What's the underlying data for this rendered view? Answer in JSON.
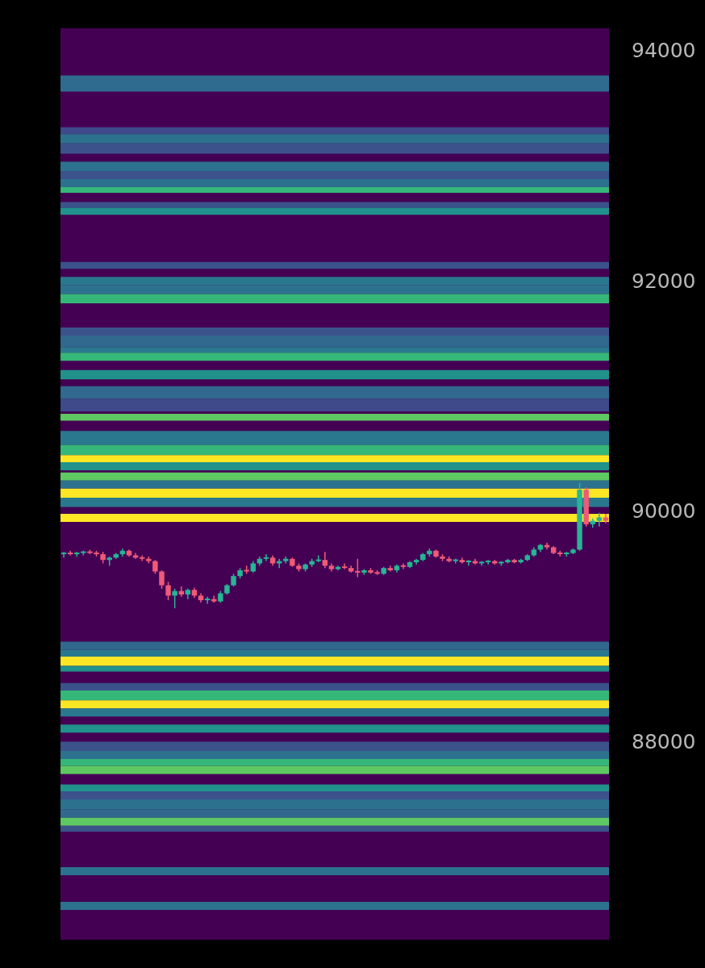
{
  "chart_data": {
    "type": "candlestick",
    "categories": [
      null,
      null,
      null,
      null,
      null,
      null,
      null,
      null,
      null,
      null,
      null,
      null,
      null,
      null,
      null,
      null,
      null,
      null,
      null,
      null,
      null,
      null,
      null,
      null,
      null,
      null,
      null,
      null,
      null,
      null,
      null,
      null,
      null,
      null,
      null,
      null,
      null,
      null,
      null,
      null,
      null,
      null,
      null,
      null,
      null,
      null,
      null,
      null,
      null,
      null,
      null,
      null,
      null,
      null,
      null,
      null,
      null,
      null,
      null,
      null,
      null,
      null,
      null,
      null,
      null,
      null,
      null,
      null,
      null,
      null,
      null,
      null,
      null,
      null,
      null,
      null,
      null,
      null,
      null,
      null,
      null,
      null,
      null,
      null
    ],
    "ohlc": [
      [
        89640,
        89660,
        89610,
        89650
      ],
      [
        89650,
        89670,
        89630,
        89640
      ],
      [
        89640,
        89660,
        89620,
        89650
      ],
      [
        89650,
        89670,
        89630,
        89660
      ],
      [
        89660,
        89680,
        89640,
        89650
      ],
      [
        89650,
        89670,
        89620,
        89640
      ],
      [
        89640,
        89660,
        89560,
        89590
      ],
      [
        89590,
        89620,
        89540,
        89610
      ],
      [
        89610,
        89650,
        89600,
        89640
      ],
      [
        89640,
        89690,
        89620,
        89670
      ],
      [
        89670,
        89680,
        89620,
        89630
      ],
      [
        89630,
        89650,
        89600,
        89610
      ],
      [
        89610,
        89630,
        89580,
        89600
      ],
      [
        89600,
        89620,
        89560,
        89580
      ],
      [
        89580,
        89590,
        89470,
        89490
      ],
      [
        89490,
        89500,
        89340,
        89370
      ],
      [
        89370,
        89400,
        89240,
        89280
      ],
      [
        89280,
        89340,
        89170,
        89320
      ],
      [
        89320,
        89360,
        89270,
        89290
      ],
      [
        89290,
        89340,
        89250,
        89330
      ],
      [
        89330,
        89350,
        89260,
        89280
      ],
      [
        89280,
        89300,
        89220,
        89240
      ],
      [
        89240,
        89270,
        89210,
        89250
      ],
      [
        89250,
        89280,
        89220,
        89230
      ],
      [
        89230,
        89320,
        89220,
        89300
      ],
      [
        89300,
        89380,
        89290,
        89370
      ],
      [
        89370,
        89470,
        89360,
        89450
      ],
      [
        89450,
        89520,
        89430,
        89500
      ],
      [
        89500,
        89540,
        89470,
        89490
      ],
      [
        89490,
        89580,
        89480,
        89560
      ],
      [
        89560,
        89620,
        89540,
        89600
      ],
      [
        89600,
        89640,
        89580,
        89610
      ],
      [
        89610,
        89630,
        89540,
        89560
      ],
      [
        89560,
        89600,
        89520,
        89580
      ],
      [
        89580,
        89620,
        89560,
        89600
      ],
      [
        89600,
        89610,
        89530,
        89540
      ],
      [
        89540,
        89560,
        89490,
        89510
      ],
      [
        89510,
        89560,
        89490,
        89550
      ],
      [
        89550,
        89600,
        89530,
        89580
      ],
      [
        89580,
        89630,
        89570,
        89590
      ],
      [
        89590,
        89660,
        89520,
        89540
      ],
      [
        89540,
        89560,
        89490,
        89510
      ],
      [
        89510,
        89540,
        89500,
        89530
      ],
      [
        89530,
        89560,
        89510,
        89520
      ],
      [
        89520,
        89540,
        89480,
        89490
      ],
      [
        89490,
        89600,
        89440,
        89480
      ],
      [
        89480,
        89510,
        89460,
        89500
      ],
      [
        89500,
        89520,
        89470,
        89480
      ],
      [
        89480,
        89500,
        89460,
        89470
      ],
      [
        89470,
        89530,
        89460,
        89520
      ],
      [
        89520,
        89540,
        89490,
        89500
      ],
      [
        89500,
        89550,
        89480,
        89540
      ],
      [
        89540,
        89560,
        89510,
        89530
      ],
      [
        89530,
        89580,
        89520,
        89570
      ],
      [
        89570,
        89600,
        89550,
        89590
      ],
      [
        89590,
        89650,
        89580,
        89640
      ],
      [
        89640,
        89690,
        89620,
        89670
      ],
      [
        89670,
        89680,
        89610,
        89620
      ],
      [
        89620,
        89640,
        89580,
        89600
      ],
      [
        89600,
        89620,
        89570,
        89580
      ],
      [
        89580,
        89600,
        89560,
        89590
      ],
      [
        89590,
        89610,
        89560,
        89570
      ],
      [
        89570,
        89590,
        89540,
        89580
      ],
      [
        89580,
        89600,
        89550,
        89560
      ],
      [
        89560,
        89580,
        89540,
        89570
      ],
      [
        89570,
        89590,
        89550,
        89580
      ],
      [
        89580,
        89590,
        89550,
        89560
      ],
      [
        89560,
        89580,
        89540,
        89570
      ],
      [
        89570,
        89600,
        89560,
        89590
      ],
      [
        89590,
        89600,
        89560,
        89570
      ],
      [
        89570,
        89600,
        89560,
        89590
      ],
      [
        89590,
        89640,
        89580,
        89630
      ],
      [
        89630,
        89700,
        89620,
        89680
      ],
      [
        89680,
        89730,
        89660,
        89720
      ],
      [
        89720,
        89740,
        89680,
        89700
      ],
      [
        89700,
        89710,
        89640,
        89650
      ],
      [
        89650,
        89670,
        89620,
        89640
      ],
      [
        89640,
        89660,
        89620,
        89650
      ],
      [
        89650,
        89690,
        89640,
        89680
      ],
      [
        89680,
        90260,
        89670,
        90200
      ],
      [
        90200,
        90220,
        89880,
        89900
      ],
      [
        89900,
        89950,
        89870,
        89930
      ],
      [
        89930,
        90000,
        89880,
        89960
      ],
      [
        89960,
        89990,
        89910,
        89930
      ]
    ],
    "colors": [
      "#26b596",
      "#ef5a78",
      "#26b596",
      "#26b596",
      "#ef5a78",
      "#ef5a78",
      "#ef5a78",
      "#26b596",
      "#26b596",
      "#26b596",
      "#ef5a78",
      "#ef5a78",
      "#ef5a78",
      "#ef5a78",
      "#ef5a78",
      "#ef5a78",
      "#ef5a78",
      "#26b596",
      "#ef5a78",
      "#26b596",
      "#ef5a78",
      "#ef5a78",
      "#26b596",
      "#ef5a78",
      "#26b596",
      "#26b596",
      "#26b596",
      "#26b596",
      "#ef5a78",
      "#26b596",
      "#26b596",
      "#26b596",
      "#ef5a78",
      "#26b596",
      "#26b596",
      "#ef5a78",
      "#ef5a78",
      "#26b596",
      "#26b596",
      "#26b596",
      "#ef5a78",
      "#ef5a78",
      "#26b596",
      "#ef5a78",
      "#ef5a78",
      "#ef5a78",
      "#26b596",
      "#ef5a78",
      "#ef5a78",
      "#26b596",
      "#ef5a78",
      "#26b596",
      "#ef5a78",
      "#26b596",
      "#26b596",
      "#26b596",
      "#26b596",
      "#ef5a78",
      "#ef5a78",
      "#ef5a78",
      "#26b596",
      "#ef5a78",
      "#26b596",
      "#ef5a78",
      "#26b596",
      "#26b596",
      "#ef5a78",
      "#26b596",
      "#26b596",
      "#ef5a78",
      "#26b596",
      "#26b596",
      "#26b596",
      "#26b596",
      "#ef5a78",
      "#ef5a78",
      "#ef5a78",
      "#26b596",
      "#26b596",
      "#26b596",
      "#ef5a78",
      "#26b596",
      "#26b596",
      "#ef5a78"
    ],
    "ylim": [
      86290,
      94210
    ],
    "yticks": [
      88000,
      90000,
      92000,
      94000
    ],
    "tick_labels": "y",
    "grid": false,
    "bands": [
      {
        "axis": "y",
        "from": 93660,
        "to": 93800,
        "color": "#2f6b8e"
      },
      {
        "axis": "y",
        "from": 93290,
        "to": 93350,
        "color": "#3e4a89"
      },
      {
        "axis": "y",
        "from": 93210,
        "to": 93290,
        "color": "#2c728e"
      },
      {
        "axis": "y",
        "from": 93120,
        "to": 93210,
        "color": "#3b528b"
      },
      {
        "axis": "y",
        "from": 92970,
        "to": 93050,
        "color": "#2c728e"
      },
      {
        "axis": "y",
        "from": 92900,
        "to": 92970,
        "color": "#3b528b"
      },
      {
        "axis": "y",
        "from": 92830,
        "to": 92900,
        "color": "#2c728e"
      },
      {
        "axis": "y",
        "from": 92780,
        "to": 92830,
        "color": "#35b779"
      },
      {
        "axis": "y",
        "from": 92650,
        "to": 92700,
        "color": "#3b528b"
      },
      {
        "axis": "y",
        "from": 92590,
        "to": 92650,
        "color": "#21918c"
      },
      {
        "axis": "y",
        "from": 92120,
        "to": 92180,
        "color": "#3b528b"
      },
      {
        "axis": "y",
        "from": 91980,
        "to": 92050,
        "color": "#2a788e"
      },
      {
        "axis": "y",
        "from": 91900,
        "to": 91980,
        "color": "#2c728e"
      },
      {
        "axis": "y",
        "from": 91820,
        "to": 91900,
        "color": "#35b779"
      },
      {
        "axis": "y",
        "from": 91540,
        "to": 91610,
        "color": "#3b528b"
      },
      {
        "axis": "y",
        "from": 91440,
        "to": 91540,
        "color": "#31688e"
      },
      {
        "axis": "y",
        "from": 91390,
        "to": 91440,
        "color": "#2a788e"
      },
      {
        "axis": "y",
        "from": 91320,
        "to": 91390,
        "color": "#35b779"
      },
      {
        "axis": "y",
        "from": 91160,
        "to": 91240,
        "color": "#21918c"
      },
      {
        "axis": "y",
        "from": 90990,
        "to": 91100,
        "color": "#31688e"
      },
      {
        "axis": "y",
        "from": 90880,
        "to": 90990,
        "color": "#3e4a89"
      },
      {
        "axis": "y",
        "from": 90800,
        "to": 90860,
        "color": "#5ec962"
      },
      {
        "axis": "y",
        "from": 90590,
        "to": 90710,
        "color": "#2a788e"
      },
      {
        "axis": "y",
        "from": 90500,
        "to": 90590,
        "color": "#35b779"
      },
      {
        "axis": "y",
        "from": 90440,
        "to": 90500,
        "color": "#fde725"
      },
      {
        "axis": "y",
        "from": 90370,
        "to": 90440,
        "color": "#21918c"
      },
      {
        "axis": "y",
        "from": 90280,
        "to": 90350,
        "color": "#5ec962"
      },
      {
        "axis": "y",
        "from": 90210,
        "to": 90280,
        "color": "#2c728e"
      },
      {
        "axis": "y",
        "from": 90130,
        "to": 90210,
        "color": "#fde725"
      },
      {
        "axis": "y",
        "from": 90050,
        "to": 90130,
        "color": "#2a788e"
      },
      {
        "axis": "y",
        "from": 89920,
        "to": 89990,
        "color": "#fde725"
      },
      {
        "axis": "y",
        "from": 88810,
        "to": 88880,
        "color": "#31688e"
      },
      {
        "axis": "y",
        "from": 88750,
        "to": 88810,
        "color": "#2a788e"
      },
      {
        "axis": "y",
        "from": 88670,
        "to": 88750,
        "color": "#fde725"
      },
      {
        "axis": "y",
        "from": 88620,
        "to": 88670,
        "color": "#21918c"
      },
      {
        "axis": "y",
        "from": 88455,
        "to": 88520,
        "color": "#3b528b"
      },
      {
        "axis": "y",
        "from": 88370,
        "to": 88455,
        "color": "#35b779"
      },
      {
        "axis": "y",
        "from": 88300,
        "to": 88370,
        "color": "#fde725"
      },
      {
        "axis": "y",
        "from": 88230,
        "to": 88300,
        "color": "#2a788e"
      },
      {
        "axis": "y",
        "from": 88090,
        "to": 88160,
        "color": "#21918c"
      },
      {
        "axis": "y",
        "from": 87930,
        "to": 88010,
        "color": "#3b528b"
      },
      {
        "axis": "y",
        "from": 87860,
        "to": 87930,
        "color": "#2c728e"
      },
      {
        "axis": "y",
        "from": 87800,
        "to": 87860,
        "color": "#35b779"
      },
      {
        "axis": "y",
        "from": 87730,
        "to": 87800,
        "color": "#5ec962"
      },
      {
        "axis": "y",
        "from": 87580,
        "to": 87640,
        "color": "#21918c"
      },
      {
        "axis": "y",
        "from": 87510,
        "to": 87580,
        "color": "#3b528b"
      },
      {
        "axis": "y",
        "from": 87420,
        "to": 87510,
        "color": "#2c728e"
      },
      {
        "axis": "y",
        "from": 87350,
        "to": 87420,
        "color": "#31688e"
      },
      {
        "axis": "y",
        "from": 87280,
        "to": 87350,
        "color": "#5ec962"
      },
      {
        "axis": "y",
        "from": 87230,
        "to": 87280,
        "color": "#3b528b"
      },
      {
        "axis": "y",
        "from": 86850,
        "to": 86920,
        "color": "#2c728e"
      },
      {
        "axis": "y",
        "from": 86550,
        "to": 86620,
        "color": "#2c728e"
      }
    ]
  }
}
